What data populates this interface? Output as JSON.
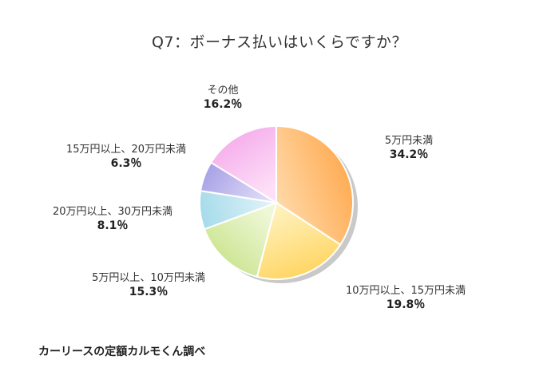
{
  "chart_data": {
    "type": "pie",
    "title": "Q7：ボーナス払いはいくらですか？",
    "slices": [
      {
        "label": "5万円未満",
        "value": 34.2,
        "display": "34.2％",
        "color": "#ffa94f",
        "light": "#ffd9a8"
      },
      {
        "label": "10万円以上、15万円未満",
        "value": 19.8,
        "display": "19.8％",
        "color": "#ffd45e",
        "light": "#fff2bf"
      },
      {
        "label": "5万円以上、10万円未満",
        "value": 15.3,
        "display": "15.3％",
        "color": "#c8e38a",
        "light": "#eef7d6"
      },
      {
        "label": "20万円以上、30万円未満",
        "value": 8.1,
        "display": "8.1％",
        "color": "#a6dbea",
        "light": "#e2f4fa"
      },
      {
        "label": "15万円以上、20万円未満",
        "value": 6.3,
        "display": "6.3％",
        "color": "#a9a2e6",
        "light": "#dfdcf8"
      },
      {
        "label": "その他",
        "value": 16.2,
        "display": "16.2％",
        "color": "#f5a9ea",
        "light": "#fde0f8"
      }
    ],
    "source": "カーリースの定額カルモくん調べ"
  }
}
